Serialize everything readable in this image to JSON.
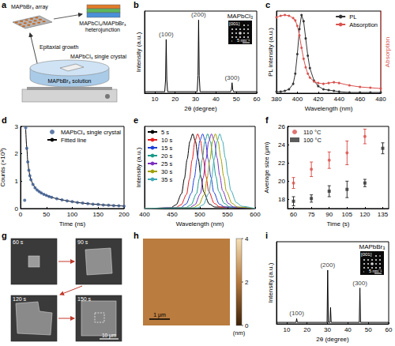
{
  "chart_data": [
    {
      "panel": "b",
      "type": "line",
      "x_label": "2θ (degree)",
      "y_label": "Intensity (a.u.)",
      "x": [
        5,
        14.9,
        15.3,
        15.6,
        15.9,
        16.3,
        30.8,
        31.2,
        31.5,
        31.8,
        32.2,
        47.2,
        47.6,
        47.9,
        48.2,
        48.6,
        60
      ],
      "values": [
        2,
        2,
        18,
        72,
        18,
        2,
        2,
        24,
        98,
        24,
        2,
        2,
        5,
        14,
        5,
        2,
        2
      ],
      "color": "#000000",
      "xlim": [
        5,
        60
      ],
      "xticks": [
        10,
        20,
        30,
        40,
        50,
        60
      ],
      "ylim": [
        0,
        110
      ],
      "tick_labels": "x",
      "annotations": [
        {
          "text": "(100)",
          "x": 15.6
        },
        {
          "text": "(200)",
          "x": 31.5
        },
        {
          "text": "(300)",
          "x": 47.9
        }
      ],
      "inset": {
        "title": "MAPbCl₃",
        "zone_axis": "[001]",
        "scale_bar": "5 nm⁻¹"
      }
    },
    {
      "panel": "c",
      "type": "line",
      "x_label": "Wavelength (nm)",
      "y_label": "PL intensity (a.u.)",
      "y2_label": "Absorption",
      "x": [
        380,
        384,
        388,
        392,
        396,
        398,
        400,
        402,
        404,
        406,
        408,
        410,
        412,
        416,
        420,
        425,
        430,
        435,
        440,
        450,
        460,
        470,
        480
      ],
      "series": [
        {
          "name": "PL",
          "color": "#333333",
          "marker": "circle",
          "values": [
            0.02,
            0.02,
            0.03,
            0.05,
            0.12,
            0.25,
            0.5,
            0.82,
            1.0,
            0.92,
            0.7,
            0.48,
            0.32,
            0.16,
            0.09,
            0.05,
            0.04,
            0.03,
            0.02,
            0.01,
            0.01,
            0.01,
            0.01
          ]
        },
        {
          "name": "Absorption",
          "color": "#d9534f",
          "marker": "circle",
          "axis": "y2",
          "values": [
            0.97,
            0.99,
            1.0,
            0.99,
            0.96,
            0.93,
            0.86,
            0.74,
            0.58,
            0.44,
            0.33,
            0.25,
            0.2,
            0.15,
            0.13,
            0.12,
            0.13,
            0.14,
            0.13,
            0.1,
            0.08,
            0.07,
            0.06
          ]
        }
      ],
      "xlim": [
        380,
        480
      ],
      "xticks": [
        380,
        400,
        420,
        440,
        460,
        480
      ],
      "ylim": [
        0,
        1.05
      ],
      "y2lim": [
        0,
        1.05
      ],
      "tick_labels": "x",
      "legend": "upper right"
    },
    {
      "panel": "d",
      "type": "scatter",
      "x_label": "Time (ns)",
      "y_label": "Counts (×10³)",
      "x": [
        8,
        10,
        12,
        14,
        16,
        18,
        20,
        24,
        28,
        32,
        36,
        40,
        45,
        50,
        55,
        60,
        70,
        80,
        90,
        100,
        110,
        120,
        130,
        140,
        150,
        160,
        170,
        180,
        190,
        200
      ],
      "series": [
        {
          "name": "MAPbCl₃ single crystal",
          "type": "scatter",
          "color": "#3b5b92",
          "marker": "circle",
          "values": [
            0.3,
            2.95,
            2.2,
            1.7,
            1.4,
            1.2,
            1.05,
            0.88,
            0.76,
            0.68,
            0.62,
            0.57,
            0.52,
            0.48,
            0.44,
            0.41,
            0.36,
            0.32,
            0.28,
            0.25,
            0.22,
            0.2,
            0.18,
            0.16,
            0.15,
            0.13,
            0.12,
            0.11,
            0.1,
            0.09
          ]
        },
        {
          "name": "Fitted line",
          "type": "line",
          "color": "#000000",
          "values": [
            null,
            2.9,
            2.25,
            1.72,
            1.42,
            1.2,
            1.05,
            0.89,
            0.77,
            0.68,
            0.62,
            0.57,
            0.52,
            0.48,
            0.44,
            0.41,
            0.36,
            0.32,
            0.28,
            0.25,
            0.22,
            0.2,
            0.18,
            0.16,
            0.15,
            0.13,
            0.12,
            0.11,
            0.1,
            0.09
          ]
        }
      ],
      "xlim": [
        0,
        200
      ],
      "xticks": [
        0,
        50,
        100,
        150,
        200
      ],
      "ylim": [
        0,
        3
      ],
      "yticks": [
        0,
        1,
        2,
        3
      ],
      "legend": "upper right"
    },
    {
      "panel": "e",
      "type": "line",
      "x_label": "Wavelength (nm)",
      "y_label": "Intensity (a.u.)",
      "series": [
        {
          "name": "5 s",
          "color": "#000000",
          "x": [
            400,
            447,
            457,
            467,
            472,
            477,
            482,
            487,
            492,
            497,
            502,
            507,
            517,
            527,
            600
          ],
          "values": [
            0,
            0.01,
            0.05,
            0.2,
            0.4,
            0.66,
            0.9,
            1,
            0.9,
            0.67,
            0.42,
            0.22,
            0.06,
            0.02,
            0
          ]
        },
        {
          "name": "10 s",
          "color": "#e41a1c",
          "x": [
            400,
            456,
            466,
            476,
            481,
            486,
            491,
            496,
            501,
            506,
            511,
            516,
            526,
            536,
            600
          ],
          "values": [
            0,
            0.01,
            0.05,
            0.19,
            0.39,
            0.65,
            0.9,
            1,
            0.91,
            0.68,
            0.43,
            0.23,
            0.07,
            0.02,
            0
          ]
        },
        {
          "name": "15 s",
          "color": "#1f3fd8",
          "x": [
            400,
            465,
            475,
            485,
            490,
            495,
            500,
            505,
            510,
            515,
            520,
            525,
            535,
            545,
            600
          ],
          "values": [
            0,
            0.01,
            0.06,
            0.21,
            0.41,
            0.66,
            0.91,
            1,
            0.9,
            0.66,
            0.42,
            0.22,
            0.06,
            0.02,
            0
          ]
        },
        {
          "name": "20 s",
          "color": "#1a9a8a",
          "x": [
            400,
            474,
            484,
            494,
            499,
            504,
            509,
            514,
            519,
            524,
            529,
            534,
            544,
            554,
            600
          ],
          "values": [
            0,
            0.01,
            0.05,
            0.2,
            0.4,
            0.65,
            0.9,
            1,
            0.9,
            0.67,
            0.43,
            0.23,
            0.07,
            0.02,
            0
          ]
        },
        {
          "name": "25 s",
          "color": "#7b2fbf",
          "x": [
            400,
            481,
            491,
            501,
            506,
            511,
            516,
            521,
            526,
            531,
            536,
            541,
            551,
            561,
            600
          ],
          "values": [
            0,
            0.01,
            0.05,
            0.2,
            0.41,
            0.66,
            0.9,
            1,
            0.91,
            0.68,
            0.44,
            0.24,
            0.07,
            0.02,
            0
          ]
        },
        {
          "name": "30 s",
          "color": "#a0a000",
          "x": [
            400,
            488,
            498,
            508,
            513,
            518,
            523,
            528,
            533,
            538,
            543,
            548,
            558,
            568,
            600
          ],
          "values": [
            0,
            0.01,
            0.05,
            0.19,
            0.4,
            0.65,
            0.9,
            1,
            0.9,
            0.67,
            0.43,
            0.23,
            0.07,
            0.02,
            0
          ]
        },
        {
          "name": "35 s",
          "color": "#3fa7b5",
          "x": [
            400,
            496,
            506,
            516,
            521,
            526,
            531,
            536,
            541,
            546,
            551,
            556,
            566,
            576,
            600
          ],
          "values": [
            0,
            0.01,
            0.05,
            0.2,
            0.4,
            0.66,
            0.9,
            1,
            0.9,
            0.68,
            0.44,
            0.24,
            0.08,
            0.03,
            0
          ]
        }
      ],
      "xlim": [
        400,
        600
      ],
      "xticks": [
        400,
        450,
        500,
        550,
        600
      ],
      "ylim": [
        0,
        1.1
      ],
      "tick_labels": "x",
      "legend": "upper left"
    },
    {
      "panel": "f",
      "type": "scatter",
      "x_label": "Time (s)",
      "y_label": "Average size (μm)",
      "series": [
        {
          "name": "110 °C",
          "color": "#d9534f",
          "marker": "circle",
          "x": [
            60,
            75,
            90,
            105,
            120
          ],
          "values": [
            19.8,
            21.3,
            22.3,
            23.1,
            24.9
          ],
          "errors": [
            0.6,
            0.8,
            0.9,
            1.3,
            0.8
          ]
        },
        {
          "name": "100 °C",
          "color": "#333333",
          "marker": "square",
          "x": [
            60,
            75,
            90,
            105,
            120,
            135
          ],
          "values": [
            17.8,
            18.1,
            18.9,
            19.1,
            19.8,
            23.6
          ],
          "errors": [
            0.5,
            0.4,
            0.6,
            0.9,
            0.4,
            0.6
          ]
        }
      ],
      "xlim": [
        55,
        140
      ],
      "xticks": [
        60,
        75,
        90,
        105,
        120,
        135
      ],
      "ylim": [
        17,
        26
      ],
      "yticks": [
        18,
        20,
        22,
        24,
        26
      ],
      "legend": "upper left"
    },
    {
      "panel": "i",
      "type": "line",
      "x_label": "2θ (degree)",
      "y_label": "Intensity (a.u.)",
      "x": [
        5,
        14.6,
        14.9,
        15.2,
        29.8,
        30.1,
        30.4,
        31.2,
        31.5,
        31.8,
        45.6,
        45.9,
        46.2,
        60
      ],
      "values": [
        2,
        2,
        7,
        2,
        2,
        72,
        2,
        2,
        22,
        2,
        2,
        48,
        2,
        2
      ],
      "color": "#000000",
      "xlim": [
        5,
        60
      ],
      "xticks": [
        10,
        20,
        30,
        40,
        50,
        60
      ],
      "ylim": [
        0,
        110
      ],
      "tick_labels": "x",
      "annotations": [
        {
          "text": "(100)",
          "x": 14.9
        },
        {
          "text": "(200)",
          "x": 30.1
        },
        {
          "text": "(300)",
          "x": 45.9
        }
      ],
      "inset": {
        "title": "MAPbBr₃",
        "zone_axis": "[001]",
        "scale_bar": "5 nm⁻¹"
      }
    }
  ],
  "schematic": {
    "panel": "a",
    "array": "MAPbBr₃ array",
    "growth": "Epitaxial growth",
    "heterojunction": "MAPbCl₃/MAPbBr₃ heterojunction",
    "crystal": "MAPbCl₃ single crystal",
    "solution": "MAPbBr₃ solution"
  },
  "sem_images": {
    "panel": "g",
    "frames": [
      "60 s",
      "90 s",
      "120 s",
      "150 s"
    ],
    "scale_bar": "10 μm"
  },
  "afm_image": {
    "panel": "h",
    "scale_bar": "1 μm",
    "colorbar": {
      "range": [
        0,
        4
      ],
      "ticks": [
        0,
        2,
        4
      ],
      "unit": "(nm)"
    }
  }
}
